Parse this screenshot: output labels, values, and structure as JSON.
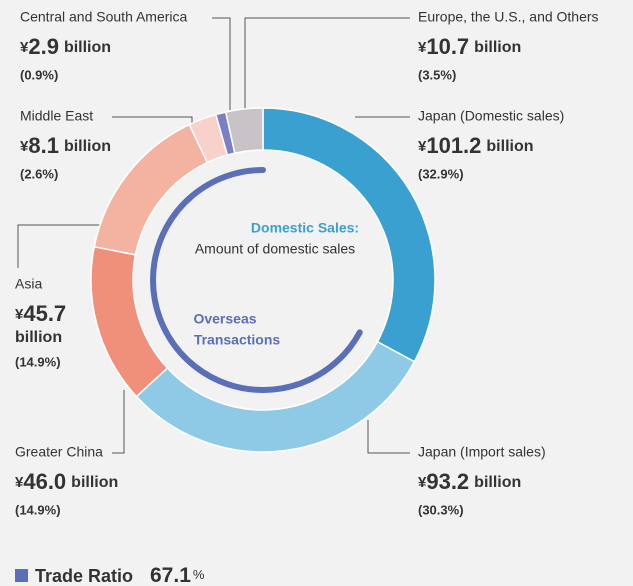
{
  "chart_data": {
    "type": "donut",
    "categories": [
      "Japan (Domestic sales)",
      "Japan (Import sales)",
      "Greater China",
      "Asia",
      "Middle East",
      "Central and South America",
      "Europe, the U.S., and Others"
    ],
    "values": [
      101.2,
      93.2,
      46.0,
      45.7,
      8.1,
      2.9,
      10.7
    ],
    "value_labels": [
      "101.2",
      "93.2",
      "46.0",
      "45.7",
      "8.1",
      "2.9",
      "10.7"
    ],
    "colors": [
      "#3aa0cf",
      "#8ecae6",
      "#f0907a",
      "#f4b3a0",
      "#f8d1cb",
      "#7b7fc4",
      "#c8c3c6"
    ],
    "shares": [
      32.9,
      30.3,
      14.9,
      14.9,
      2.6,
      0.9,
      3.5
    ],
    "share_labels": [
      "(32.9%)",
      "(30.3%)",
      "(14.9%)",
      "(14.9%)",
      "(2.6%)",
      "(0.9%)",
      "(3.5%)"
    ],
    "currency": "¥",
    "unit": "billion",
    "center_labels": {
      "domestic_title": "Domestic Sales:",
      "domestic_text": "Amount of domestic sales",
      "overseas_line1": "Overseas",
      "overseas_line2": "Transactions"
    },
    "trade_ratio": {
      "label": "Trade Ratio",
      "value": 67.1,
      "value_label": "67.1",
      "unit": "%",
      "color": "#5b6fb8"
    }
  }
}
